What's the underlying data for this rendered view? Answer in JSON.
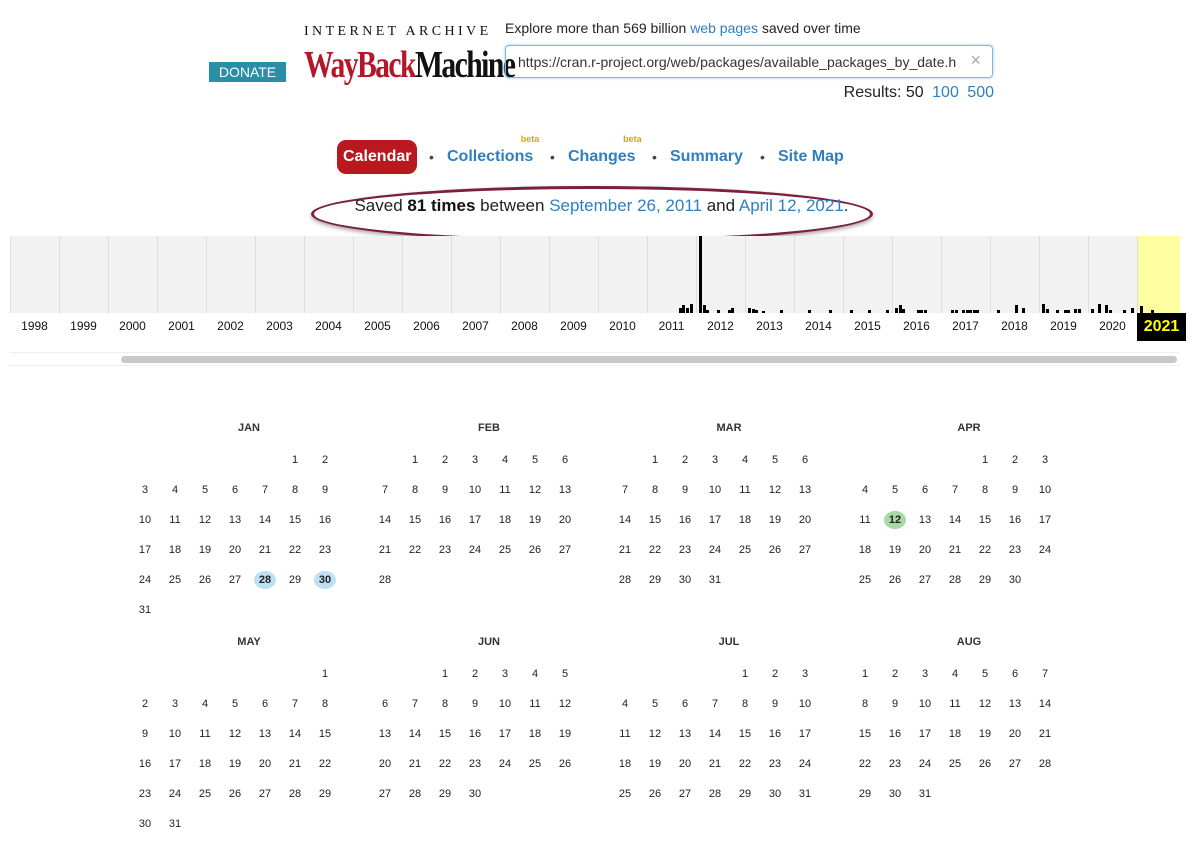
{
  "header": {
    "donate_label": "DONATE",
    "logo_top": "INTERNET ARCHIVE",
    "logo_wayback": "WayBack",
    "logo_machine": "Machine",
    "explore_prefix": "Explore more than 569 billion",
    "explore_link": "web pages",
    "explore_suffix": "saved over time",
    "url_value": "https://cran.r-project.org/web/packages/available_packages_by_date.h",
    "results_label": "Results: 50",
    "results_100": "100",
    "results_500": "500"
  },
  "tabs": [
    {
      "label": "Calendar",
      "active": true
    },
    {
      "label": "Collections",
      "beta": "beta"
    },
    {
      "label": "Changes",
      "beta": "beta"
    },
    {
      "label": "Summary"
    },
    {
      "label": "Site Map"
    }
  ],
  "summary": {
    "prefix": "Saved",
    "count": "81 times",
    "between": "between",
    "first_date": "September 26, 2011",
    "and": "and",
    "last_date": "April 12, 2021",
    "end": "."
  },
  "timeline": {
    "years": [
      "1998",
      "1999",
      "2000",
      "2001",
      "2002",
      "2003",
      "2004",
      "2005",
      "2006",
      "2007",
      "2008",
      "2009",
      "2010",
      "2011",
      "2012",
      "2013",
      "2014",
      "2015",
      "2016",
      "2017",
      "2018",
      "2019",
      "2020",
      "2021"
    ],
    "selected_year": "2021",
    "captures": [
      {
        "year": 2011,
        "month": 8,
        "level": 0.07
      },
      {
        "year": 2011,
        "month": 9,
        "level": 0.1
      },
      {
        "year": 2011,
        "month": 10,
        "level": 0.06
      },
      {
        "year": 2011,
        "month": 11,
        "level": 0.12
      },
      {
        "year": 2012,
        "month": 0,
        "level": 1.0
      },
      {
        "year": 2012,
        "month": 1,
        "level": 0.1
      },
      {
        "year": 2012,
        "month": 2,
        "level": 0.04
      },
      {
        "year": 2012,
        "month": 5,
        "level": 0.04
      },
      {
        "year": 2012,
        "month": 8,
        "level": 0.04
      },
      {
        "year": 2012,
        "month": 9,
        "level": 0.06
      },
      {
        "year": 2013,
        "month": 0,
        "level": 0.07
      },
      {
        "year": 2013,
        "month": 1,
        "level": 0.05
      },
      {
        "year": 2013,
        "month": 2,
        "level": 0.04
      },
      {
        "year": 2013,
        "month": 4,
        "level": 0.03
      },
      {
        "year": 2013,
        "month": 9,
        "level": 0.04
      },
      {
        "year": 2014,
        "month": 3,
        "level": 0.04
      },
      {
        "year": 2014,
        "month": 9,
        "level": 0.04
      },
      {
        "year": 2015,
        "month": 1,
        "level": 0.04
      },
      {
        "year": 2015,
        "month": 6,
        "level": 0.04
      },
      {
        "year": 2015,
        "month": 11,
        "level": 0.04
      },
      {
        "year": 2016,
        "month": 0,
        "level": 0.07
      },
      {
        "year": 2016,
        "month": 1,
        "level": 0.1
      },
      {
        "year": 2016,
        "month": 2,
        "level": 0.05
      },
      {
        "year": 2016,
        "month": 6,
        "level": 0.04
      },
      {
        "year": 2016,
        "month": 7,
        "level": 0.04
      },
      {
        "year": 2016,
        "month": 8,
        "level": 0.04
      },
      {
        "year": 2017,
        "month": 2,
        "level": 0.04
      },
      {
        "year": 2017,
        "month": 3,
        "level": 0.04
      },
      {
        "year": 2017,
        "month": 5,
        "level": 0.04
      },
      {
        "year": 2017,
        "month": 6,
        "level": 0.04
      },
      {
        "year": 2017,
        "month": 7,
        "level": 0.04
      },
      {
        "year": 2017,
        "month": 8,
        "level": 0.04
      },
      {
        "year": 2017,
        "month": 9,
        "level": 0.04
      },
      {
        "year": 2018,
        "month": 1,
        "level": 0.04
      },
      {
        "year": 2018,
        "month": 6,
        "level": 0.1
      },
      {
        "year": 2018,
        "month": 8,
        "level": 0.07
      },
      {
        "year": 2019,
        "month": 0,
        "level": 0.12
      },
      {
        "year": 2019,
        "month": 1,
        "level": 0.05
      },
      {
        "year": 2019,
        "month": 4,
        "level": 0.04
      },
      {
        "year": 2019,
        "month": 6,
        "level": 0.04
      },
      {
        "year": 2019,
        "month": 7,
        "level": 0.04
      },
      {
        "year": 2019,
        "month": 9,
        "level": 0.05
      },
      {
        "year": 2019,
        "month": 10,
        "level": 0.05
      },
      {
        "year": 2020,
        "month": 0,
        "level": 0.05
      },
      {
        "year": 2020,
        "month": 2,
        "level": 0.12
      },
      {
        "year": 2020,
        "month": 4,
        "level": 0.1
      },
      {
        "year": 2020,
        "month": 5,
        "level": 0.04
      },
      {
        "year": 2020,
        "month": 9,
        "level": 0.04
      },
      {
        "year": 2020,
        "month": 11,
        "level": 0.06
      },
      {
        "year": 2021,
        "month": 0,
        "level": 0.09
      },
      {
        "year": 2021,
        "month": 3,
        "level": 0.04
      }
    ]
  },
  "calendar": [
    {
      "name": "JAN",
      "first_weekday": 5,
      "days": 31,
      "captures": [
        28,
        30
      ]
    },
    {
      "name": "FEB",
      "first_weekday": 1,
      "days": 28,
      "captures": []
    },
    {
      "name": "MAR",
      "first_weekday": 1,
      "days": 31,
      "captures": []
    },
    {
      "name": "APR",
      "first_weekday": 4,
      "days": 30,
      "captures": [
        12
      ],
      "current": 12
    },
    {
      "name": "MAY",
      "first_weekday": 6,
      "days": 31,
      "captures": []
    },
    {
      "name": "JUN",
      "first_weekday": 2,
      "days": 30,
      "captures": []
    },
    {
      "name": "JUL",
      "first_weekday": 4,
      "days": 31,
      "captures": []
    },
    {
      "name": "AUG",
      "first_weekday": 0,
      "days": 31,
      "captures": []
    }
  ],
  "colors": {
    "brand_red": "#b8191e",
    "link": "#2e7fc1",
    "donate": "#2a8fa6",
    "selected_year_bg": "#fefea0",
    "capture_blue": "#bfe0f3",
    "capture_green": "#a8d8a8"
  }
}
